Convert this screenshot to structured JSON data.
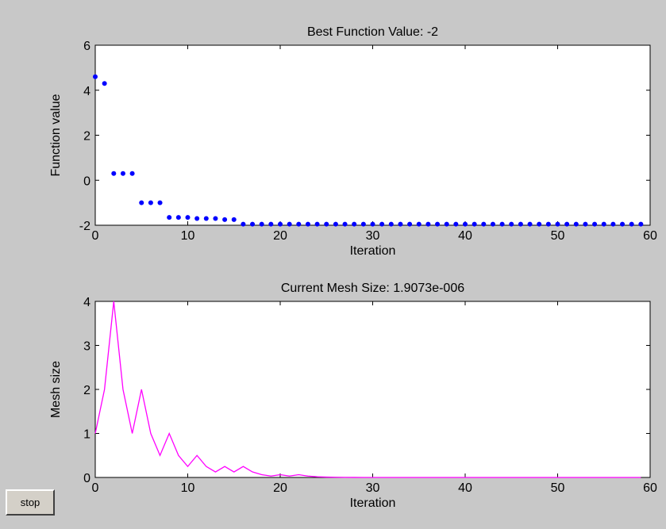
{
  "controls": {
    "stop_label": "stop"
  },
  "chart_data": [
    {
      "type": "scatter",
      "title": "Best Function Value: -2",
      "xlabel": "Iteration",
      "ylabel": "Function value",
      "xlim": [
        0,
        60
      ],
      "ylim": [
        -2,
        6
      ],
      "xticks": [
        0,
        10,
        20,
        30,
        40,
        50,
        60
      ],
      "yticks": [
        -2,
        0,
        2,
        4,
        6
      ],
      "marker_color": "#0000ff",
      "grid": false,
      "x": [
        0,
        1,
        2,
        3,
        4,
        5,
        6,
        7,
        8,
        9,
        10,
        11,
        12,
        13,
        14,
        15,
        16,
        17,
        18,
        19,
        20,
        21,
        22,
        23,
        24,
        25,
        26,
        27,
        28,
        29,
        30,
        31,
        32,
        33,
        34,
        35,
        36,
        37,
        38,
        39,
        40,
        41,
        42,
        43,
        44,
        45,
        46,
        47,
        48,
        49,
        50,
        51,
        52,
        53,
        54,
        55,
        56,
        57,
        58,
        59
      ],
      "y": [
        4.6,
        4.3,
        0.3,
        0.3,
        0.3,
        -1.0,
        -1.0,
        -1.0,
        -1.65,
        -1.65,
        -1.65,
        -1.7,
        -1.7,
        -1.7,
        -1.75,
        -1.75,
        -1.95,
        -1.95,
        -1.95,
        -1.95,
        -1.95,
        -1.95,
        -1.95,
        -1.95,
        -1.95,
        -1.95,
        -1.95,
        -1.95,
        -1.95,
        -1.95,
        -1.95,
        -1.95,
        -1.95,
        -1.95,
        -1.95,
        -1.95,
        -1.95,
        -1.95,
        -1.95,
        -1.95,
        -1.95,
        -1.95,
        -1.95,
        -1.95,
        -1.95,
        -1.95,
        -1.95,
        -1.95,
        -1.95,
        -1.95,
        -1.95,
        -1.95,
        -1.95,
        -1.95,
        -1.95,
        -1.95,
        -1.95,
        -1.95,
        -1.95,
        -1.95
      ]
    },
    {
      "type": "line",
      "title": "Current Mesh Size: 1.9073e-006",
      "xlabel": "Iteration",
      "ylabel": "Mesh size",
      "xlim": [
        0,
        60
      ],
      "ylim": [
        0,
        4
      ],
      "xticks": [
        0,
        10,
        20,
        30,
        40,
        50,
        60
      ],
      "yticks": [
        0,
        1,
        2,
        3,
        4
      ],
      "line_color": "#ff00ff",
      "grid": false,
      "x": [
        0,
        1,
        2,
        3,
        4,
        5,
        6,
        7,
        8,
        9,
        10,
        11,
        12,
        13,
        14,
        15,
        16,
        17,
        18,
        19,
        20,
        21,
        22,
        23,
        24,
        25,
        26,
        27,
        28,
        29,
        30,
        31,
        32,
        33,
        34,
        35,
        36,
        37,
        38,
        39,
        40,
        41,
        42,
        43,
        44,
        45,
        46,
        47,
        48,
        49,
        50,
        51,
        52,
        53,
        54,
        55,
        56,
        57,
        58,
        59
      ],
      "y": [
        1,
        2,
        4,
        2,
        1,
        2,
        1,
        0.5,
        1,
        0.5,
        0.25,
        0.5,
        0.25,
        0.125,
        0.25,
        0.125,
        0.25,
        0.125,
        0.0625,
        0.03125,
        0.0625,
        0.03125,
        0.0625,
        0.03125,
        0.015625,
        0.0078,
        0.0039,
        0.002,
        0.001,
        0.0005,
        0.0002,
        0.0001,
        6e-05,
        3e-05,
        1.5e-05,
        7.6e-06,
        3.8e-06,
        1.9e-06,
        1.9e-06,
        1.9e-06,
        1.9e-06,
        1.9e-06,
        1.9e-06,
        1.9e-06,
        1.9e-06,
        1.9e-06,
        1.9e-06,
        1.9e-06,
        1.9e-06,
        1.9e-06,
        1.9e-06,
        1.9e-06,
        1.9e-06,
        1.9e-06,
        1.9e-06,
        1.9e-06,
        1.9e-06,
        1.9e-06,
        1.9e-06,
        1.9e-06
      ]
    }
  ]
}
